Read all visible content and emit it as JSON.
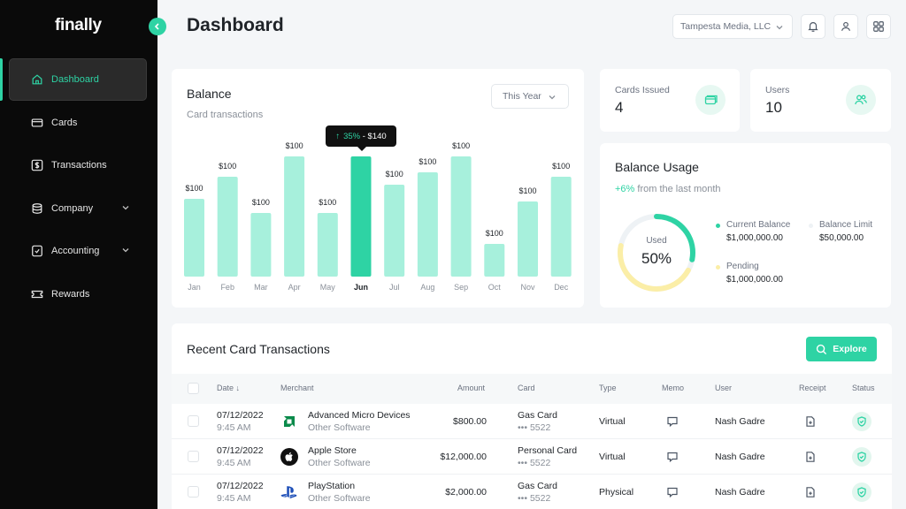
{
  "sidebar": {
    "logo": "finally",
    "items": [
      {
        "label": "Dashboard",
        "icon": "home-icon",
        "active": true
      },
      {
        "label": "Cards",
        "icon": "card-icon"
      },
      {
        "label": "Transactions",
        "icon": "dollar-icon"
      },
      {
        "label": "Company",
        "icon": "database-icon",
        "expandable": true
      },
      {
        "label": "Accounting",
        "icon": "folder-icon",
        "expandable": true
      },
      {
        "label": "Rewards",
        "icon": "ticket-icon"
      }
    ]
  },
  "header": {
    "title": "Dashboard",
    "company": "Tampesta Media, LLC"
  },
  "balance": {
    "title": "Balance",
    "subtitle": "Card transactions",
    "period": "This Year",
    "tooltip": {
      "pct": "35%",
      "amount": "- $140"
    }
  },
  "chart_data": {
    "type": "bar",
    "categories": [
      "Jan",
      "Feb",
      "Mar",
      "Apr",
      "May",
      "Jun",
      "Jul",
      "Aug",
      "Sep",
      "Oct",
      "Nov",
      "Dec"
    ],
    "values": [
      88,
      113,
      72,
      136,
      72,
      136,
      104,
      118,
      136,
      37,
      85,
      113
    ],
    "data_labels": [
      "$100",
      "$100",
      "$100",
      "$100",
      "$100",
      "$140",
      "$100",
      "$100",
      "$100",
      "$100",
      "$100",
      "$100"
    ],
    "highlighted": "Jun",
    "colors": {
      "bar": "#a7f0dc",
      "highlight": "#2ed3a4"
    }
  },
  "stats": {
    "cards_issued": {
      "label": "Cards Issued",
      "value": "4"
    },
    "users": {
      "label": "Users",
      "value": "10"
    }
  },
  "usage": {
    "title": "Balance Usage",
    "change": "+6%",
    "change_text": "from the last month",
    "used_label": "Used",
    "used_value": "50%",
    "used_fraction": 0.5,
    "legend": [
      {
        "label": "Current Balance",
        "value": "$1,000,000.00",
        "color": "#2ed3a4"
      },
      {
        "label": "Balance Limit",
        "value": "$50,000.00",
        "color": "#eef2f5"
      },
      {
        "label": "Pending",
        "value": "$1,000,000.00",
        "color": "#fbeea7"
      }
    ]
  },
  "transactions": {
    "title": "Recent Card Transactions",
    "explore": "Explore",
    "columns": [
      "Date",
      "Merchant",
      "Amount",
      "Card",
      "Type",
      "Memo",
      "User",
      "Receipt",
      "Status"
    ],
    "rows": [
      {
        "date": "07/12/2022",
        "time": "9:45 AM",
        "merchant": "Advanced Micro Devices",
        "category": "Other Software",
        "amount": "$800.00",
        "card": "Gas Card",
        "card_num": "••• 5522",
        "type": "Virtual",
        "user": "Nash Gadre",
        "logo": "amd-logo"
      },
      {
        "date": "07/12/2022",
        "time": "9:45 AM",
        "merchant": "Apple Store",
        "category": "Other Software",
        "amount": "$12,000.00",
        "card": "Personal Card",
        "card_num": "••• 5522",
        "type": "Virtual",
        "user": "Nash Gadre",
        "logo": "apple-logo"
      },
      {
        "date": "07/12/2022",
        "time": "9:45 AM",
        "merchant": "PlayStation",
        "category": "Other Software",
        "amount": "$2,000.00",
        "card": "Gas Card",
        "card_num": "••• 5522",
        "type": "Physical",
        "user": "Nash Gadre",
        "logo": "playstation-logo"
      }
    ]
  }
}
